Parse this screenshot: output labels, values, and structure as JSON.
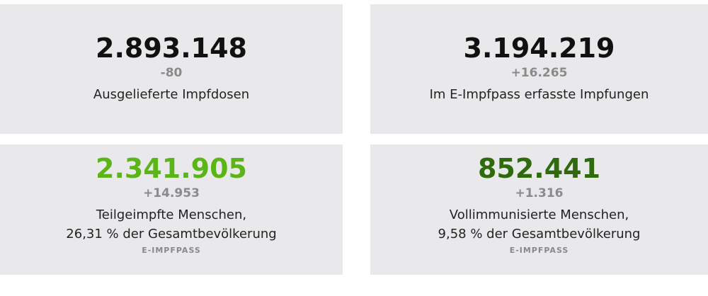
{
  "cards": [
    {
      "value": "2.893.148",
      "delta": "-80",
      "label_line1": "Ausgelieferte Impfdosen",
      "label_line2": "",
      "source": "",
      "value_color": "#111111"
    },
    {
      "value": "3.194.219",
      "delta": "+16.265",
      "label_line1": "Im E-Impfpass erfasste Impfungen",
      "label_line2": "",
      "source": "",
      "value_color": "#111111"
    },
    {
      "value": "2.341.905",
      "delta": "+14.953",
      "label_line1": "Teilgeimpfte Menschen,",
      "label_line2": "26,31 % der Gesamtbevölkerung",
      "source": "E-IMPFPASS",
      "value_color": "#5cb517"
    },
    {
      "value": "852.441",
      "delta": "+1.316",
      "label_line1": "Vollimmunisierte Menschen,",
      "label_line2": "9,58 % der Gesamtbevölkerung",
      "source": "E-IMPFPASS",
      "value_color": "#2f6b0c"
    }
  ]
}
